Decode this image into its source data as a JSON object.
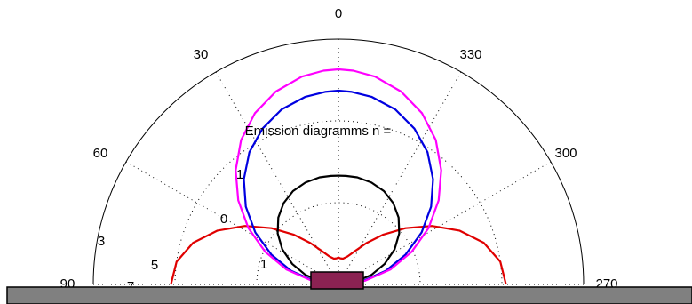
{
  "chart_data": {
    "type": "polar",
    "title": "Emission diagramms n =",
    "angle_unit": "degrees",
    "angle_ticks": [
      "0",
      "30",
      "60",
      "90",
      "270",
      "300",
      "330"
    ],
    "radial_ticks": [
      "1",
      "0",
      "3",
      "5",
      "1",
      "7"
    ],
    "series": [
      {
        "color": "#e00000",
        "theta": [
          0,
          8,
          16,
          24,
          32,
          40,
          48,
          56,
          64,
          72,
          80,
          86,
          90,
          94,
          100,
          108,
          116,
          124,
          132,
          140,
          148,
          156,
          164,
          172,
          180
        ],
        "r": [
          2.05,
          2.0,
          1.85,
          1.62,
          1.35,
          1.07,
          0.82,
          0.61,
          0.45,
          0.36,
          0.32,
          0.32,
          0.33,
          0.32,
          0.32,
          0.36,
          0.45,
          0.61,
          0.82,
          1.07,
          1.35,
          1.62,
          1.85,
          2.0,
          2.05
        ]
      },
      {
        "color": "#000000",
        "theta": [
          0,
          8,
          16,
          24,
          32,
          40,
          48,
          56,
          64,
          72,
          80,
          86,
          90,
          94,
          100,
          108,
          116,
          124,
          132,
          140,
          148,
          156,
          164,
          172,
          180
        ],
        "r": [
          0.02,
          0.2,
          0.42,
          0.62,
          0.81,
          0.97,
          1.1,
          1.2,
          1.27,
          1.31,
          1.33,
          1.33,
          1.33,
          1.33,
          1.33,
          1.31,
          1.27,
          1.2,
          1.1,
          0.97,
          0.81,
          0.62,
          0.42,
          0.2,
          0.02
        ]
      },
      {
        "color": "#0000e0",
        "theta": [
          0,
          8,
          16,
          24,
          32,
          40,
          48,
          56,
          64,
          72,
          80,
          86,
          90,
          94,
          100,
          108,
          116,
          124,
          132,
          140,
          148,
          156,
          164,
          172,
          180
        ],
        "r": [
          0.02,
          0.3,
          0.6,
          0.9,
          1.2,
          1.48,
          1.73,
          1.95,
          2.12,
          2.25,
          2.33,
          2.36,
          2.37,
          2.36,
          2.33,
          2.25,
          2.12,
          1.95,
          1.73,
          1.48,
          1.2,
          0.9,
          0.6,
          0.3,
          0.02
        ]
      },
      {
        "color": "#ff00ff",
        "theta": [
          0,
          8,
          16,
          24,
          32,
          40,
          48,
          56,
          64,
          72,
          80,
          86,
          90,
          94,
          100,
          108,
          116,
          124,
          132,
          140,
          148,
          156,
          164,
          172,
          180
        ],
        "r": [
          0.02,
          0.33,
          0.66,
          0.98,
          1.3,
          1.6,
          1.88,
          2.13,
          2.33,
          2.48,
          2.58,
          2.62,
          2.63,
          2.62,
          2.58,
          2.48,
          2.33,
          2.13,
          1.88,
          1.6,
          1.3,
          0.98,
          0.66,
          0.33,
          0.02
        ]
      }
    ],
    "r_max": 3.0,
    "grid": true,
    "substrate_color": "#808080",
    "emitter_color": "#8b2252"
  }
}
